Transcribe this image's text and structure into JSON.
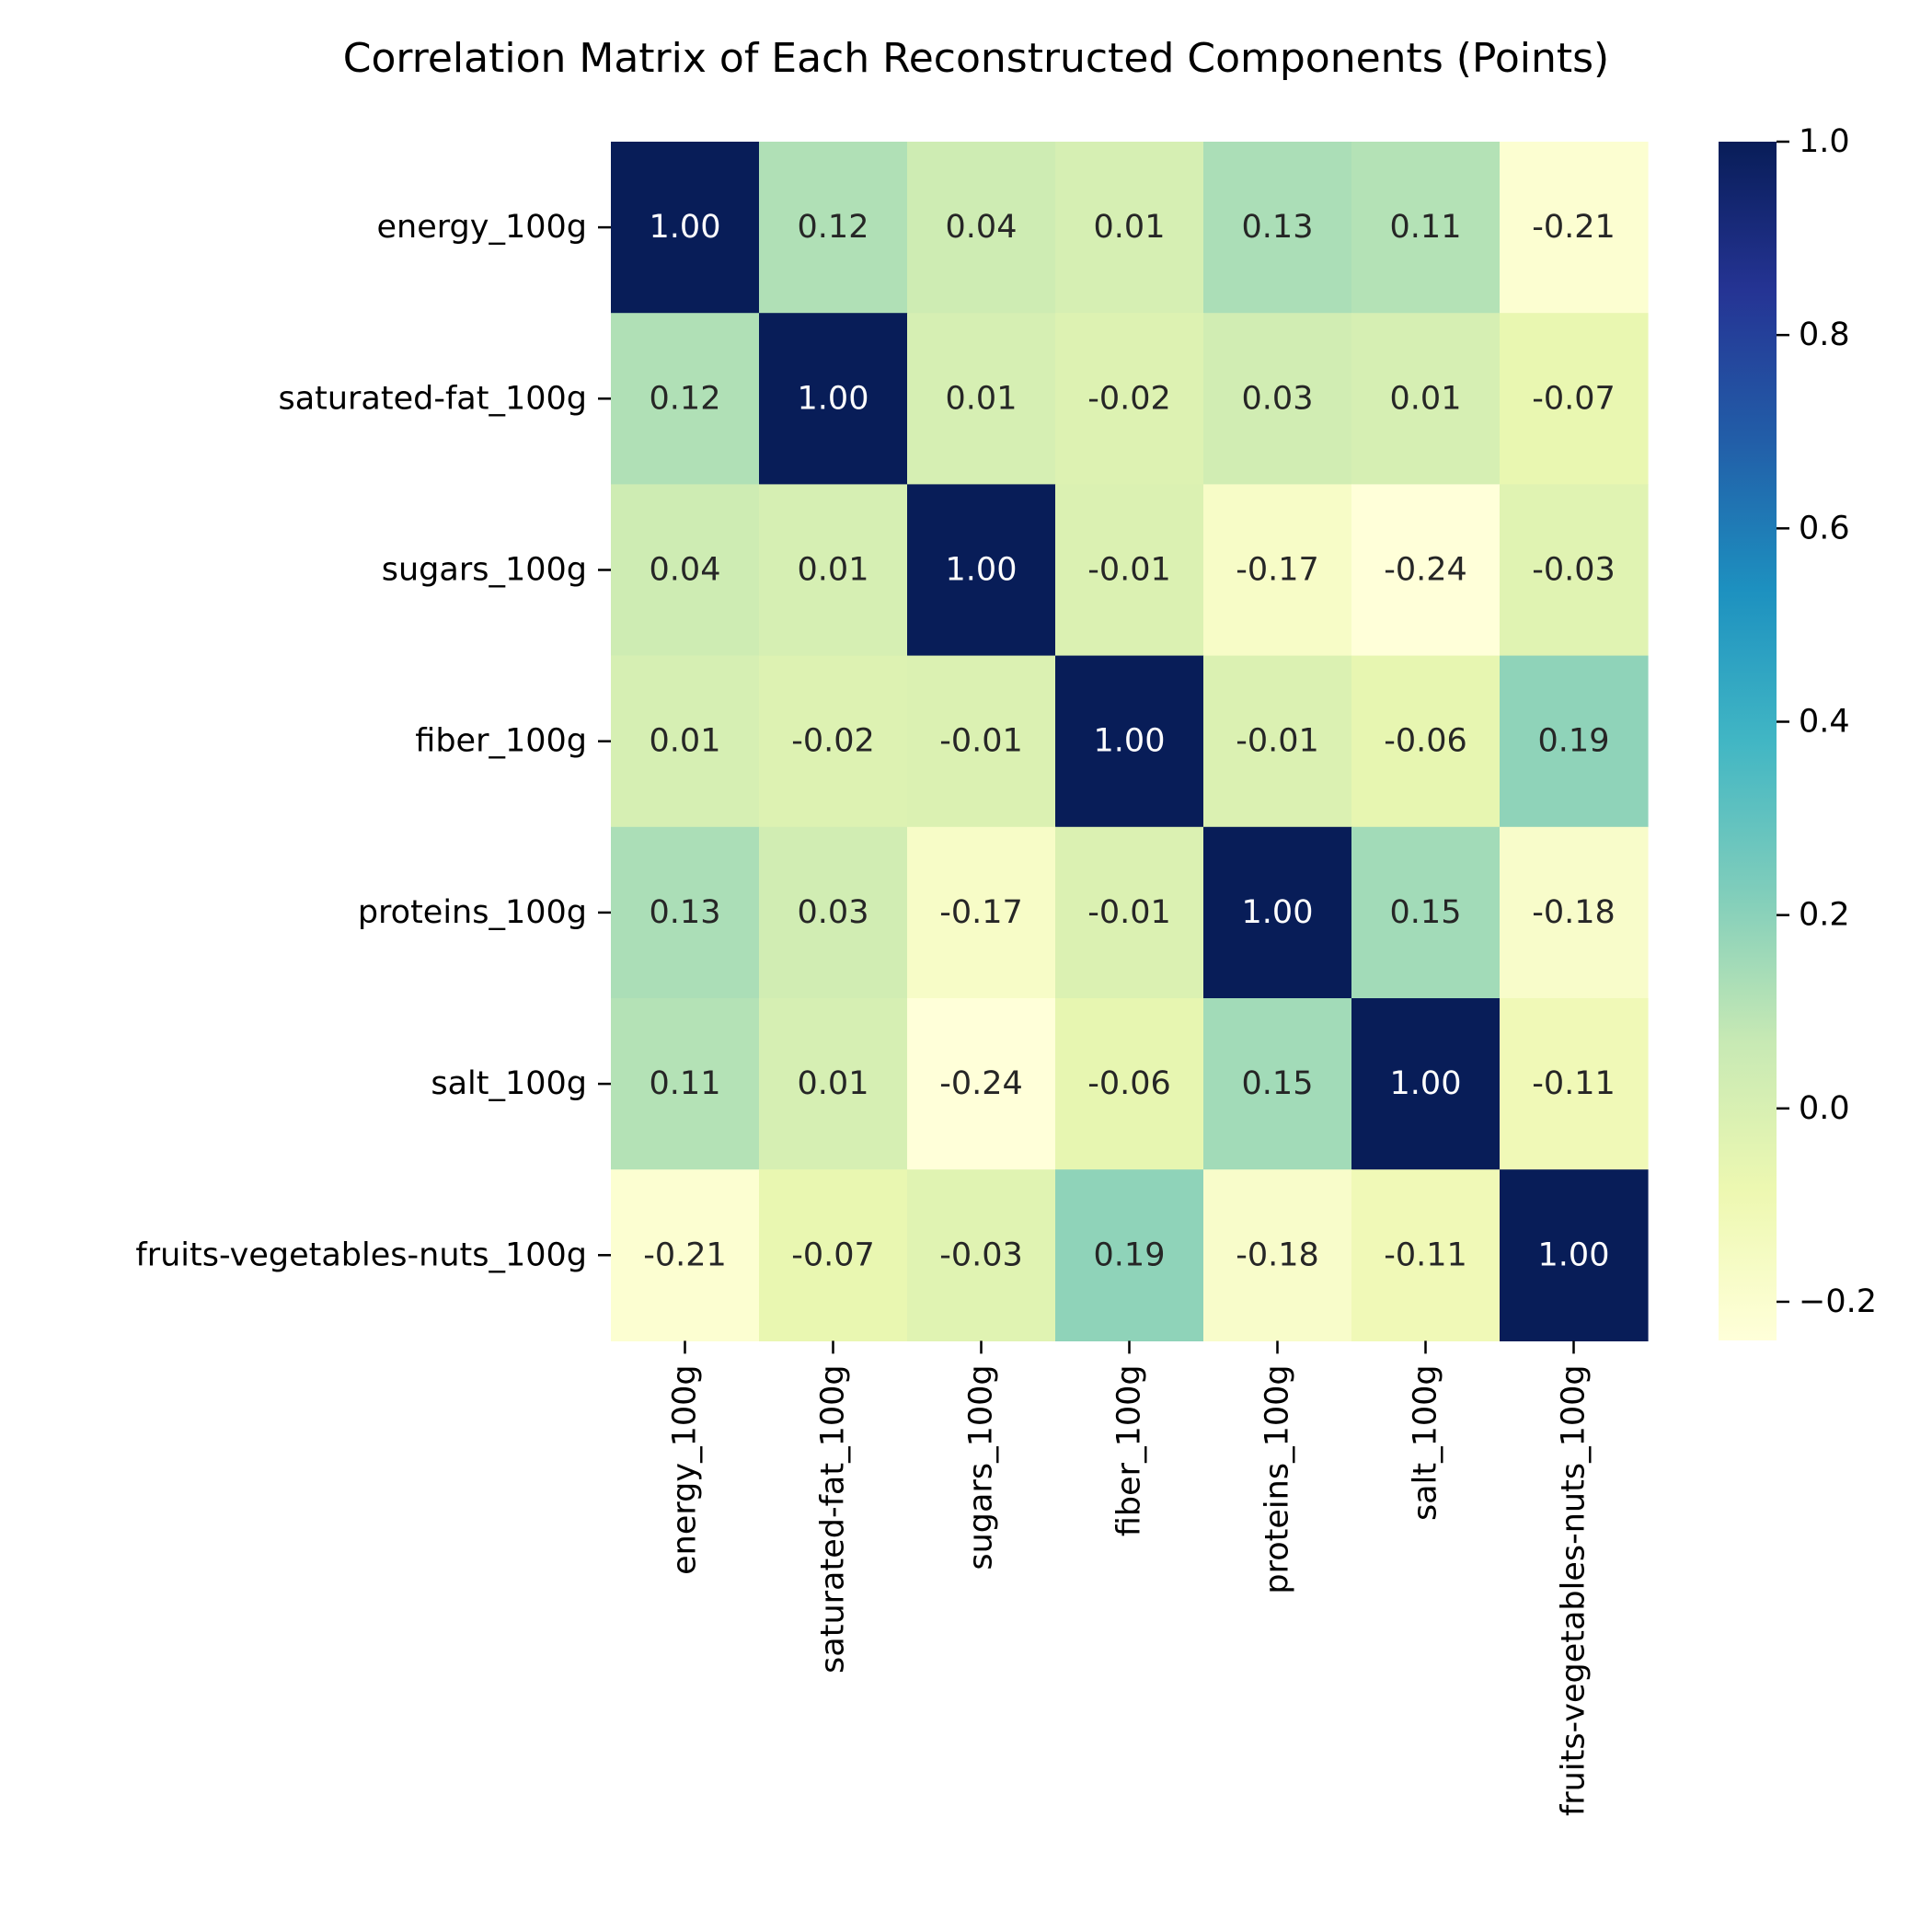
{
  "chart_data": {
    "type": "heatmap",
    "title": "Correlation Matrix of Each Reconstructed Components (Points)",
    "row_labels": [
      "energy_100g",
      "saturated-fat_100g",
      "sugars_100g",
      "fiber_100g",
      "proteins_100g",
      "salt_100g",
      "fruits-vegetables-nuts_100g"
    ],
    "col_labels": [
      "energy_100g",
      "saturated-fat_100g",
      "sugars_100g",
      "fiber_100g",
      "proteins_100g",
      "salt_100g",
      "fruits-vegetables-nuts_100g"
    ],
    "values": [
      [
        1.0,
        0.12,
        0.04,
        0.01,
        0.13,
        0.11,
        -0.21
      ],
      [
        0.12,
        1.0,
        0.01,
        -0.02,
        0.03,
        0.01,
        -0.07
      ],
      [
        0.04,
        0.01,
        1.0,
        -0.01,
        -0.17,
        -0.24,
        -0.03
      ],
      [
        0.01,
        -0.02,
        -0.01,
        1.0,
        -0.01,
        -0.06,
        0.19
      ],
      [
        0.13,
        0.03,
        -0.17,
        -0.01,
        1.0,
        0.15,
        -0.18
      ],
      [
        0.11,
        0.01,
        -0.24,
        -0.06,
        0.15,
        1.0,
        -0.11
      ],
      [
        -0.21,
        -0.07,
        -0.03,
        0.19,
        -0.18,
        -0.11,
        1.0
      ]
    ],
    "annotation_format": "2 decimals",
    "colormap": "YlGnBu",
    "colorbar": {
      "range": [
        -0.24,
        1.0
      ],
      "ticks": [
        -0.2,
        0.0,
        0.2,
        0.4,
        0.6,
        0.8,
        1.0
      ],
      "tick_labels": [
        "−0.2",
        "0.0",
        "0.2",
        "0.4",
        "0.6",
        "0.8",
        "1.0"
      ],
      "placement": "right"
    },
    "colors": {
      "stops": [
        "#ffffd9",
        "#edf8b1",
        "#c7e9b4",
        "#7fcdbb",
        "#41b6c4",
        "#1d91c0",
        "#225ea8",
        "#253494",
        "#081d58"
      ],
      "light_text": "#ffffff",
      "dark_text": "#262626"
    }
  }
}
